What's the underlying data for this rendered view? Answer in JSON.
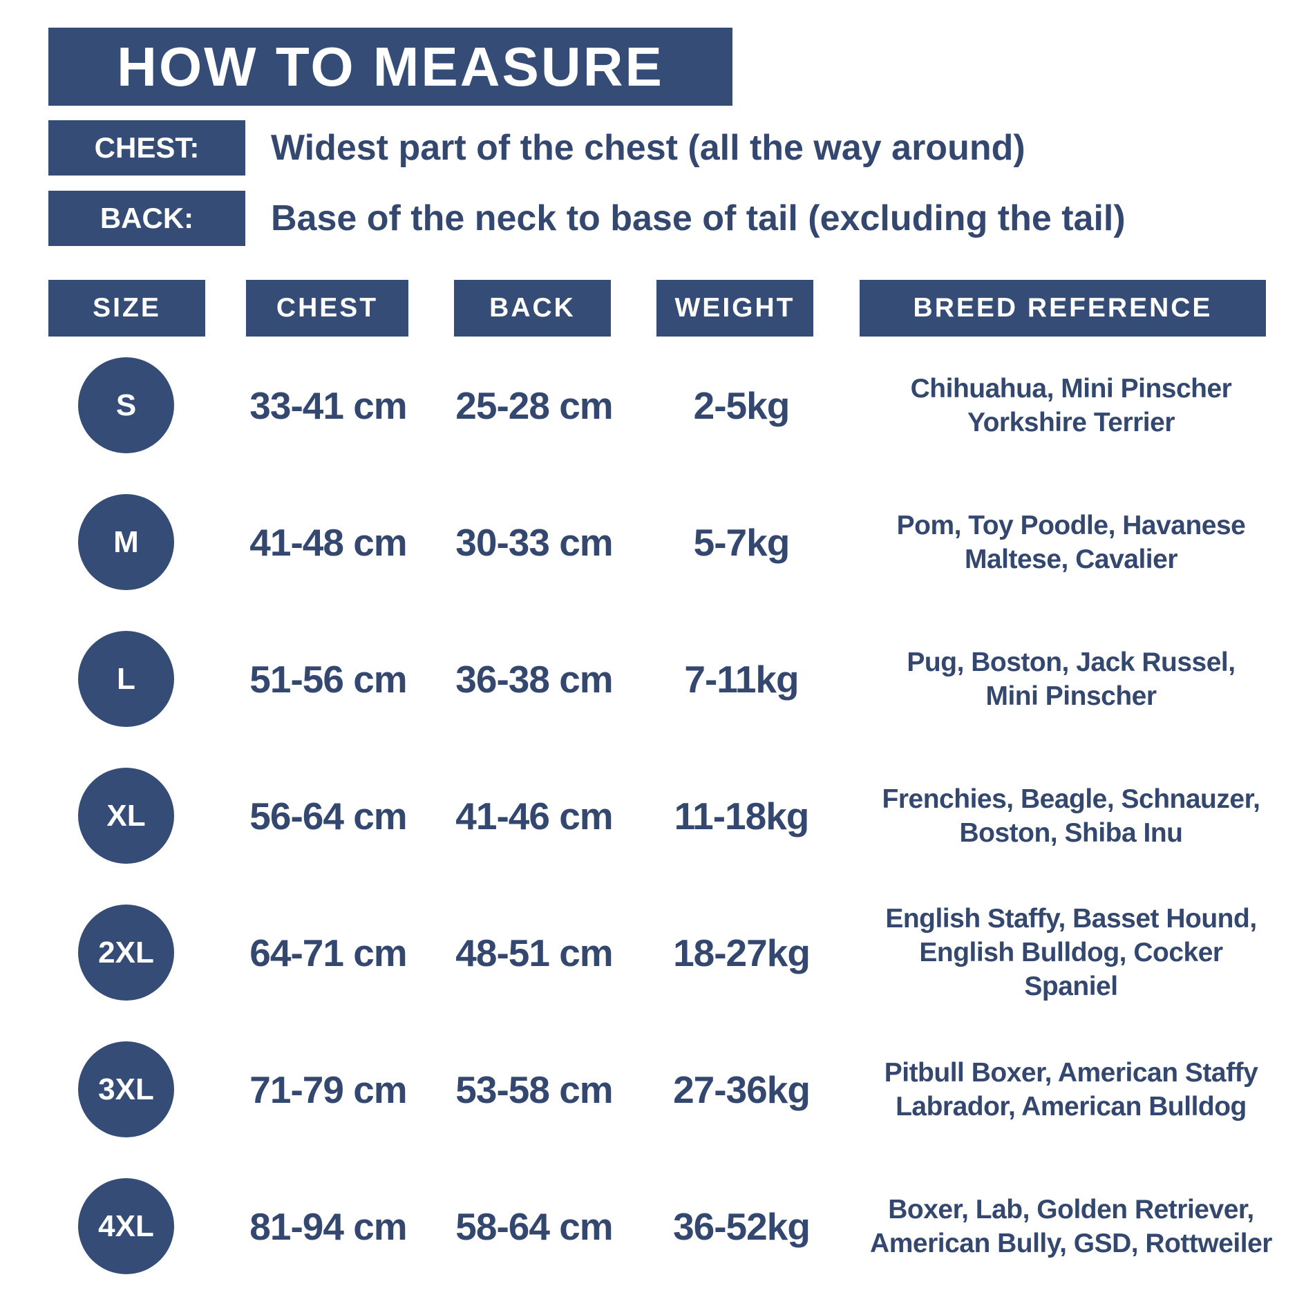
{
  "title": "HOW TO MEASURE",
  "definitions": [
    {
      "label": "CHEST:",
      "text": "Widest part of the chest (all the way around)"
    },
    {
      "label": "BACK:",
      "text": "Base of the neck to base of tail (excluding the tail)"
    }
  ],
  "headers": {
    "size": "SIZE",
    "chest": "CHEST",
    "back": "BACK",
    "weight": "WEIGHT",
    "breed": "BREED REFERENCE"
  },
  "rows": [
    {
      "size": "S",
      "chest": "33-41 cm",
      "back": "25-28 cm",
      "weight": "2-5kg",
      "breed": [
        "Chihuahua, Mini Pinscher",
        "Yorkshire Terrier"
      ]
    },
    {
      "size": "M",
      "chest": "41-48 cm",
      "back": "30-33 cm",
      "weight": "5-7kg",
      "breed": [
        "Pom, Toy Poodle, Havanese",
        "Maltese, Cavalier"
      ]
    },
    {
      "size": "L",
      "chest": "51-56 cm",
      "back": "36-38 cm",
      "weight": "7-11kg",
      "breed": [
        "Pug, Boston, Jack Russel,",
        "Mini Pinscher"
      ]
    },
    {
      "size": "XL",
      "chest": "56-64 cm",
      "back": "41-46 cm",
      "weight": "11-18kg",
      "breed": [
        "Frenchies, Beagle, Schnauzer,",
        "Boston, Shiba Inu"
      ]
    },
    {
      "size": "2XL",
      "chest": "64-71 cm",
      "back": "48-51 cm",
      "weight": "18-27kg",
      "breed": [
        "English Staffy, Basset Hound,",
        "English Bulldog, Cocker",
        "Spaniel"
      ]
    },
    {
      "size": "3XL",
      "chest": "71-79 cm",
      "back": "53-58 cm",
      "weight": "27-36kg",
      "breed": [
        "Pitbull Boxer, American Staffy",
        "Labrador, American Bulldog"
      ]
    },
    {
      "size": "4XL",
      "chest": "81-94 cm",
      "back": "58-64 cm",
      "weight": "36-52kg",
      "breed": [
        "Boxer, Lab, Golden Retriever,",
        "American Bully, GSD, Rottweiler"
      ]
    }
  ],
  "colors": {
    "box_fill": "#344c76",
    "text": "#33476f",
    "box_text": "#ffffff"
  }
}
